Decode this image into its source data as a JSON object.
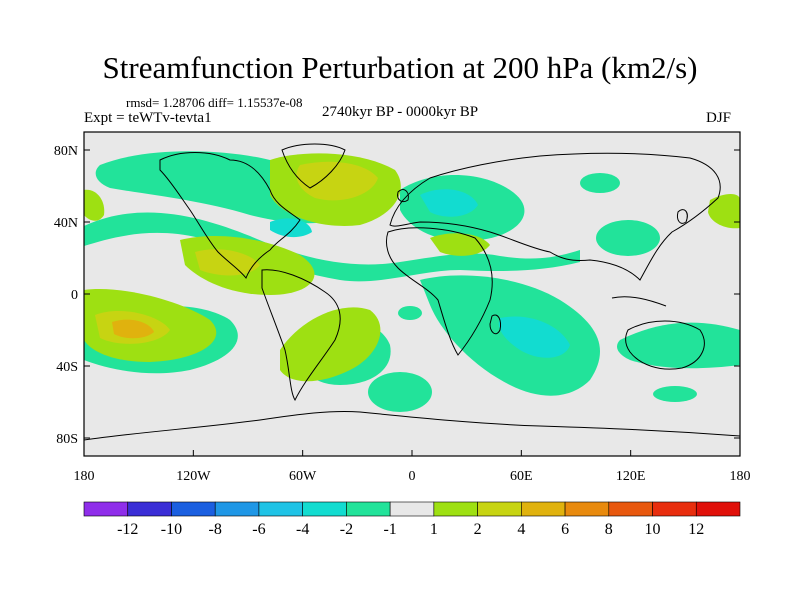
{
  "title": "Streamfunction Perturbation at 200 hPa (km2/s)",
  "stats": "rmsd= 1.28706 diff= 1.15537e-08",
  "expt": "Expt = teWTv-tevta1",
  "period": "2740kyr BP - 0000kyr BP",
  "season": "DJF",
  "lat_labels": [
    "80N",
    "40N",
    "0",
    "40S",
    "80S"
  ],
  "lat_values": [
    80,
    40,
    0,
    -40,
    -80
  ],
  "lon_labels": [
    "180",
    "120W",
    "60W",
    "0",
    "60E",
    "120E",
    "180"
  ],
  "lon_values": [
    -180,
    -120,
    -60,
    0,
    60,
    120,
    180
  ],
  "colorbar": {
    "labels": [
      "-12",
      "-10",
      "-8",
      "-6",
      "-4",
      "-2",
      "-1",
      "1",
      "2",
      "4",
      "6",
      "8",
      "10",
      "12"
    ],
    "colors": [
      "#8f2eea",
      "#3a2ed6",
      "#1b5fe0",
      "#1f97e6",
      "#1fc3e6",
      "#12dcd0",
      "#22e39a",
      "#e8e8e8",
      "#9ee012",
      "#c7d412",
      "#e0b20e",
      "#e88a0e",
      "#e8580e",
      "#e82e0e",
      "#e0100a"
    ]
  },
  "map_colors": {
    "neutral": "#e8e8e8",
    "pos1": "#9ee012",
    "pos2": "#c7d412",
    "pos3": "#e0b20e",
    "neg1": "#22e39a",
    "neg2": "#12dcd0",
    "neg3": "#1fc3e6"
  }
}
